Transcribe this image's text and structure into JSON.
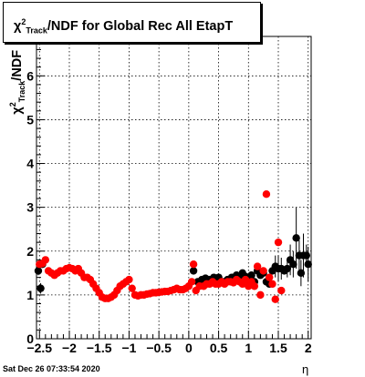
{
  "chart_data": {
    "type": "scatter",
    "title": {
      "chi": "χ",
      "sup": "2",
      "sub": "Track",
      "rest": "/NDF for Global Rec All EtapT"
    },
    "xlabel": "η",
    "ylabel": {
      "chi": "χ",
      "sup": "2",
      "sub": "Track",
      "rest": "/NDF"
    },
    "xlim": [
      -2.55,
      2.05
    ],
    "ylim": [
      0,
      6.9
    ],
    "x_ticks": [
      {
        "v": -2.5,
        "label": "−2.5"
      },
      {
        "v": -2,
        "label": "−2"
      },
      {
        "v": -1.5,
        "label": "−1.5"
      },
      {
        "v": -1,
        "label": "−1"
      },
      {
        "v": -0.5,
        "label": "−0.5"
      },
      {
        "v": 0,
        "label": "0"
      },
      {
        "v": 0.5,
        "label": "0.5"
      },
      {
        "v": 1,
        "label": "1"
      },
      {
        "v": 1.5,
        "label": "1.5"
      },
      {
        "v": 2,
        "label": "2"
      }
    ],
    "y_ticks": [
      {
        "v": 0,
        "label": "0"
      },
      {
        "v": 1,
        "label": "1"
      },
      {
        "v": 2,
        "label": "2"
      },
      {
        "v": 3,
        "label": "3"
      },
      {
        "v": 4,
        "label": "4"
      },
      {
        "v": 5,
        "label": "5"
      },
      {
        "v": 6,
        "label": "6"
      }
    ],
    "grid": true,
    "series": [
      {
        "color": "#000000",
        "points": [
          [
            -2.52,
            1.55
          ],
          [
            -2.48,
            1.15
          ],
          [
            -2.45,
            1.7
          ],
          [
            0.08,
            1.55
          ],
          [
            0.15,
            1.3
          ],
          [
            0.22,
            1.35
          ],
          [
            0.28,
            1.38
          ],
          [
            0.35,
            1.35
          ],
          [
            0.42,
            1.4
          ],
          [
            0.5,
            1.4
          ],
          [
            0.58,
            1.3
          ],
          [
            0.65,
            1.35
          ],
          [
            0.72,
            1.4
          ],
          [
            0.8,
            1.45
          ],
          [
            0.85,
            1.35
          ],
          [
            0.9,
            1.5
          ],
          [
            0.95,
            1.42
          ],
          [
            1.0,
            1.35
          ],
          [
            1.05,
            1.45
          ],
          [
            1.1,
            1.3
          ],
          [
            1.15,
            1.55
          ],
          [
            1.2,
            1.45
          ],
          [
            1.25,
            1.5
          ],
          [
            1.3,
            1.3
          ],
          [
            1.35,
            1.25
          ],
          [
            1.4,
            1.55
          ],
          [
            1.45,
            1.65
          ],
          [
            1.5,
            1.6
          ],
          [
            1.55,
            1.6
          ],
          [
            1.6,
            1.55
          ],
          [
            1.65,
            1.6
          ],
          [
            1.7,
            1.8
          ],
          [
            1.75,
            1.7
          ],
          [
            1.8,
            2.3
          ],
          [
            1.85,
            1.9
          ],
          [
            1.88,
            1.5
          ],
          [
            1.92,
            1.9
          ],
          [
            1.97,
            1.9
          ],
          [
            2.0,
            1.7
          ]
        ],
        "errors": [
          [
            -2.52,
            0.1
          ],
          [
            -2.48,
            0.12
          ],
          [
            1.7,
            0.35
          ],
          [
            1.8,
            0.7
          ],
          [
            1.85,
            0.35
          ],
          [
            1.88,
            0.3
          ],
          [
            1.92,
            0.5
          ],
          [
            1.97,
            0.25
          ],
          [
            2.0,
            0.4
          ],
          [
            1.75,
            0.3
          ],
          [
            1.65,
            0.2
          ],
          [
            1.55,
            0.25
          ],
          [
            1.5,
            0.3
          ],
          [
            1.45,
            0.25
          ]
        ]
      },
      {
        "color": "#ff0000",
        "points": [
          [
            -2.5,
            1.7
          ],
          [
            -2.45,
            1.72
          ],
          [
            -2.4,
            1.8
          ],
          [
            -2.35,
            1.55
          ],
          [
            -2.3,
            1.5
          ],
          [
            -2.25,
            1.45
          ],
          [
            -2.2,
            1.5
          ],
          [
            -2.15,
            1.55
          ],
          [
            -2.1,
            1.55
          ],
          [
            -2.05,
            1.6
          ],
          [
            -2.0,
            1.62
          ],
          [
            -1.95,
            1.6
          ],
          [
            -1.9,
            1.55
          ],
          [
            -1.85,
            1.6
          ],
          [
            -1.8,
            1.5
          ],
          [
            -1.75,
            1.4
          ],
          [
            -1.7,
            1.4
          ],
          [
            -1.65,
            1.35
          ],
          [
            -1.6,
            1.25
          ],
          [
            -1.55,
            1.15
          ],
          [
            -1.5,
            1.05
          ],
          [
            -1.45,
            0.95
          ],
          [
            -1.4,
            0.92
          ],
          [
            -1.35,
            0.92
          ],
          [
            -1.3,
            0.95
          ],
          [
            -1.25,
            1.0
          ],
          [
            -1.2,
            1.1
          ],
          [
            -1.15,
            1.2
          ],
          [
            -1.1,
            1.25
          ],
          [
            -1.05,
            1.3
          ],
          [
            -1.0,
            1.35
          ],
          [
            -0.95,
            1.15
          ],
          [
            -0.9,
            1.0
          ],
          [
            -0.85,
            0.98
          ],
          [
            -0.8,
            1.0
          ],
          [
            -0.75,
            1.0
          ],
          [
            -0.7,
            1.02
          ],
          [
            -0.65,
            1.03
          ],
          [
            -0.6,
            1.05
          ],
          [
            -0.55,
            1.05
          ],
          [
            -0.5,
            1.06
          ],
          [
            -0.45,
            1.07
          ],
          [
            -0.4,
            1.08
          ],
          [
            -0.35,
            1.08
          ],
          [
            -0.3,
            1.1
          ],
          [
            -0.25,
            1.12
          ],
          [
            -0.2,
            1.15
          ],
          [
            -0.15,
            1.12
          ],
          [
            -0.1,
            1.12
          ],
          [
            -0.05,
            1.15
          ],
          [
            0.0,
            1.2
          ],
          [
            0.05,
            1.3
          ],
          [
            0.08,
            1.7
          ],
          [
            0.12,
            1.1
          ],
          [
            0.18,
            1.2
          ],
          [
            0.25,
            1.2
          ],
          [
            0.3,
            1.25
          ],
          [
            0.35,
            1.25
          ],
          [
            0.4,
            1.3
          ],
          [
            0.45,
            1.25
          ],
          [
            0.5,
            1.25
          ],
          [
            0.55,
            1.3
          ],
          [
            0.6,
            1.25
          ],
          [
            0.65,
            1.3
          ],
          [
            0.7,
            1.3
          ],
          [
            0.75,
            1.28
          ],
          [
            0.8,
            1.35
          ],
          [
            0.85,
            1.3
          ],
          [
            0.9,
            1.25
          ],
          [
            0.95,
            1.35
          ],
          [
            1.0,
            1.2
          ],
          [
            1.05,
            1.3
          ],
          [
            1.1,
            1.2
          ],
          [
            1.15,
            1.65
          ],
          [
            1.2,
            1.0
          ],
          [
            1.25,
            1.55
          ],
          [
            1.3,
            3.3
          ],
          [
            1.35,
            1.4
          ],
          [
            1.4,
            1.25
          ],
          [
            1.45,
            0.9
          ],
          [
            1.5,
            2.2
          ],
          [
            1.55,
            1.1
          ]
        ]
      }
    ]
  },
  "timestamp": "Sat Dec 26 07:33:54 2020"
}
